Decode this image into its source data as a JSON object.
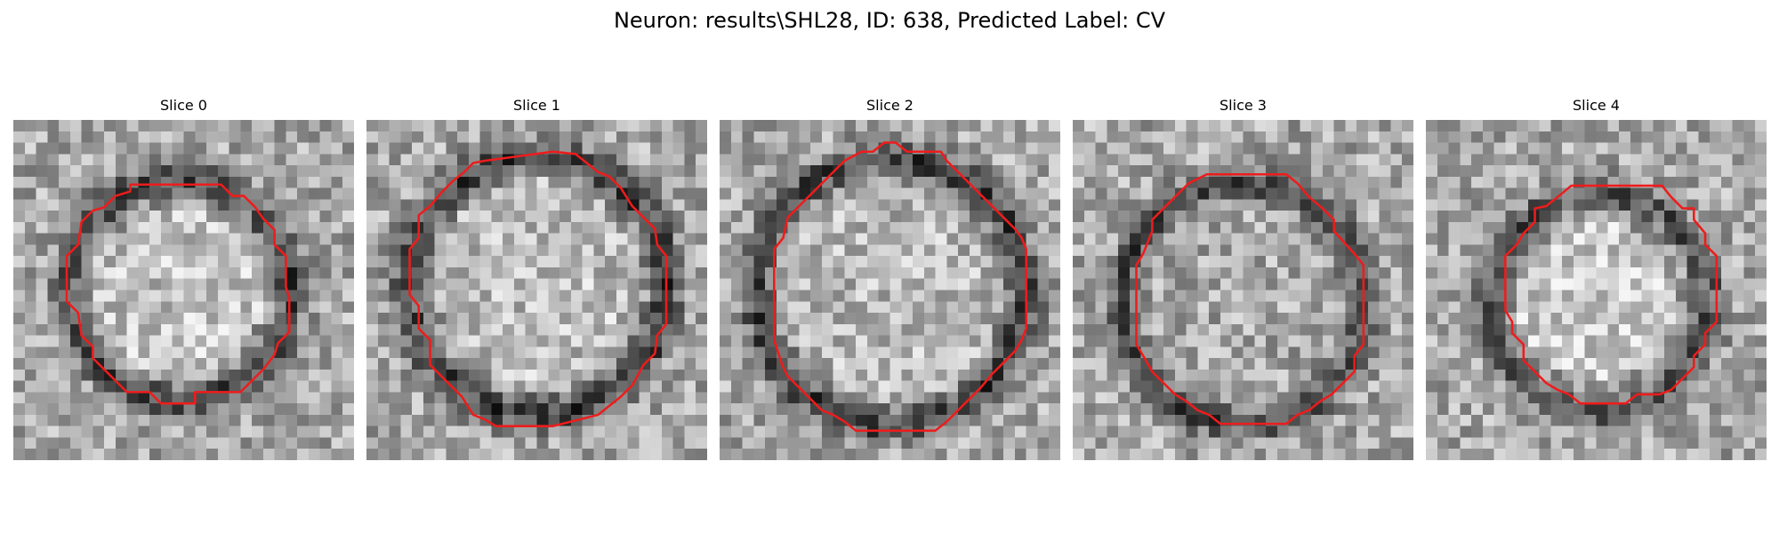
{
  "figure": {
    "title": "Neuron: results\\SHL28, ID: 638, Predicted Label: CV"
  },
  "contour_color": "#ee1c1c",
  "grid_size": 30,
  "slices": [
    {
      "title": "Slice 0",
      "seed": 11,
      "ring": {
        "cx": 14.6,
        "cy": 15.0,
        "r": 9.8,
        "darkness": 0.38
      },
      "core": {
        "cx": 14.4,
        "cy": 15.2,
        "r": 7.5,
        "brightness": 0.1
      },
      "contour": [
        [
          10.3,
          5.7
        ],
        [
          18.3,
          5.7
        ],
        [
          19.3,
          6.7
        ],
        [
          20.3,
          6.7
        ],
        [
          21.3,
          7.7
        ],
        [
          22.0,
          8.7
        ],
        [
          23.0,
          9.7
        ],
        [
          23.0,
          11.0
        ],
        [
          24.0,
          12.0
        ],
        [
          24.0,
          14.7
        ],
        [
          24.3,
          15.7
        ],
        [
          24.3,
          18.7
        ],
        [
          23.3,
          19.7
        ],
        [
          23.0,
          20.7
        ],
        [
          22.0,
          22.0
        ],
        [
          21.0,
          23.0
        ],
        [
          20.0,
          24.0
        ],
        [
          16.0,
          24.0
        ],
        [
          16.0,
          25.0
        ],
        [
          13.0,
          25.0
        ],
        [
          12.0,
          24.0
        ],
        [
          10.0,
          24.0
        ],
        [
          9.0,
          23.0
        ],
        [
          8.0,
          22.0
        ],
        [
          7.0,
          21.0
        ],
        [
          7.0,
          20.0
        ],
        [
          6.0,
          19.0
        ],
        [
          5.7,
          17.0
        ],
        [
          4.7,
          16.0
        ],
        [
          4.7,
          12.0
        ],
        [
          5.7,
          11.0
        ],
        [
          6.0,
          9.0
        ],
        [
          7.0,
          8.0
        ],
        [
          8.0,
          7.7
        ],
        [
          9.0,
          6.7
        ],
        [
          10.3,
          6.3
        ]
      ]
    },
    {
      "title": "Slice 1",
      "seed": 23,
      "ring": {
        "cx": 15.0,
        "cy": 14.6,
        "r": 11.4,
        "darkness": 0.4
      },
      "core": {
        "cx": 15.0,
        "cy": 14.2,
        "r": 9.0,
        "brightness": 0.08
      },
      "contour": [
        [
          10.4,
          3.6
        ],
        [
          16.4,
          2.8
        ],
        [
          18.4,
          3.0
        ],
        [
          20.4,
          4.6
        ],
        [
          21.4,
          5.0
        ],
        [
          22.4,
          6.0
        ],
        [
          23.4,
          7.6
        ],
        [
          24.4,
          8.6
        ],
        [
          25.4,
          9.6
        ],
        [
          25.6,
          11.0
        ],
        [
          26.4,
          12.0
        ],
        [
          26.4,
          18.0
        ],
        [
          25.6,
          19.0
        ],
        [
          25.4,
          20.6
        ],
        [
          24.4,
          21.6
        ],
        [
          23.4,
          23.4
        ],
        [
          22.4,
          24.4
        ],
        [
          20.4,
          26.0
        ],
        [
          16.4,
          27.0
        ],
        [
          11.4,
          27.0
        ],
        [
          10.4,
          26.4
        ],
        [
          9.4,
          26.0
        ],
        [
          8.4,
          24.4
        ],
        [
          7.4,
          23.4
        ],
        [
          6.4,
          22.4
        ],
        [
          5.6,
          21.6
        ],
        [
          5.6,
          19.4
        ],
        [
          4.6,
          18.4
        ],
        [
          4.6,
          16.4
        ],
        [
          3.8,
          15.4
        ],
        [
          3.8,
          11.4
        ],
        [
          4.6,
          10.4
        ],
        [
          4.6,
          8.4
        ],
        [
          5.6,
          7.6
        ],
        [
          6.6,
          6.4
        ],
        [
          7.6,
          5.4
        ],
        [
          8.6,
          4.6
        ],
        [
          9.4,
          3.8
        ]
      ]
    },
    {
      "title": "Slice 2",
      "seed": 37,
      "ring": {
        "cx": 15.1,
        "cy": 15.2,
        "r": 11.8,
        "darkness": 0.4
      },
      "core": {
        "cx": 14.9,
        "cy": 15.4,
        "r": 9.4,
        "brightness": 0.06
      },
      "contour": [
        [
          14.5,
          2.0
        ],
        [
          15.5,
          2.0
        ],
        [
          16.5,
          2.8
        ],
        [
          19.5,
          2.8
        ],
        [
          20.0,
          3.6
        ],
        [
          21.0,
          4.6
        ],
        [
          22.0,
          5.6
        ],
        [
          23.0,
          6.6
        ],
        [
          24.0,
          7.6
        ],
        [
          25.0,
          8.6
        ],
        [
          26.0,
          9.6
        ],
        [
          26.6,
          10.4
        ],
        [
          27.0,
          11.4
        ],
        [
          27.0,
          18.4
        ],
        [
          26.6,
          19.4
        ],
        [
          26.0,
          20.4
        ],
        [
          25.0,
          21.4
        ],
        [
          24.0,
          22.4
        ],
        [
          23.0,
          23.6
        ],
        [
          22.0,
          24.6
        ],
        [
          21.0,
          25.6
        ],
        [
          20.0,
          26.6
        ],
        [
          19.0,
          27.4
        ],
        [
          12.0,
          27.4
        ],
        [
          11.0,
          26.6
        ],
        [
          10.0,
          26.0
        ],
        [
          9.0,
          25.6
        ],
        [
          8.0,
          24.6
        ],
        [
          7.0,
          23.6
        ],
        [
          6.0,
          22.6
        ],
        [
          5.5,
          21.6
        ],
        [
          4.8,
          19.4
        ],
        [
          4.8,
          11.4
        ],
        [
          5.6,
          10.4
        ],
        [
          6.0,
          8.6
        ],
        [
          7.0,
          7.6
        ],
        [
          8.0,
          6.6
        ],
        [
          9.0,
          5.6
        ],
        [
          10.0,
          4.6
        ],
        [
          11.0,
          3.6
        ],
        [
          12.5,
          2.8
        ],
        [
          13.5,
          2.8
        ]
      ]
    },
    {
      "title": "Slice 3",
      "seed": 41,
      "ring": {
        "cx": 15.0,
        "cy": 16.2,
        "r": 10.6,
        "darkness": 0.36
      },
      "core": {
        "cx": 15.2,
        "cy": 16.0,
        "r": 8.2,
        "brightness": 0.0
      },
      "contour": [
        [
          11.8,
          4.8
        ],
        [
          18.8,
          4.8
        ],
        [
          19.8,
          5.6
        ],
        [
          20.8,
          6.8
        ],
        [
          22.0,
          7.8
        ],
        [
          23.0,
          8.8
        ],
        [
          23.0,
          9.8
        ],
        [
          24.8,
          11.8
        ],
        [
          25.6,
          12.8
        ],
        [
          25.6,
          19.8
        ],
        [
          24.8,
          20.8
        ],
        [
          24.8,
          22.2
        ],
        [
          23.8,
          23.2
        ],
        [
          22.8,
          24.2
        ],
        [
          21.8,
          24.8
        ],
        [
          20.8,
          25.6
        ],
        [
          19.8,
          26.0
        ],
        [
          18.8,
          26.8
        ],
        [
          13.0,
          26.8
        ],
        [
          12.0,
          26.0
        ],
        [
          11.0,
          25.6
        ],
        [
          10.0,
          24.8
        ],
        [
          9.0,
          24.2
        ],
        [
          8.0,
          23.2
        ],
        [
          7.0,
          22.2
        ],
        [
          6.2,
          20.8
        ],
        [
          5.6,
          19.8
        ],
        [
          5.6,
          12.8
        ],
        [
          6.2,
          11.8
        ],
        [
          7.0,
          9.8
        ],
        [
          7.0,
          8.8
        ],
        [
          8.0,
          7.8
        ],
        [
          9.0,
          6.8
        ],
        [
          10.2,
          5.6
        ]
      ]
    },
    {
      "title": "Slice 4",
      "seed": 53,
      "ring": {
        "cx": 15.3,
        "cy": 16.2,
        "r": 9.6,
        "darkness": 0.33
      },
      "core": {
        "cx": 15.0,
        "cy": 16.0,
        "r": 6.8,
        "brightness": 0.14
      },
      "contour": [
        [
          12.8,
          5.8
        ],
        [
          20.8,
          5.8
        ],
        [
          21.6,
          6.8
        ],
        [
          22.6,
          7.8
        ],
        [
          23.6,
          7.8
        ],
        [
          23.6,
          8.8
        ],
        [
          24.6,
          10.0
        ],
        [
          24.6,
          11.0
        ],
        [
          25.6,
          12.0
        ],
        [
          25.6,
          17.8
        ],
        [
          24.6,
          18.8
        ],
        [
          24.6,
          19.8
        ],
        [
          23.6,
          20.8
        ],
        [
          23.6,
          21.8
        ],
        [
          22.6,
          22.8
        ],
        [
          21.6,
          23.8
        ],
        [
          20.6,
          24.2
        ],
        [
          18.6,
          24.2
        ],
        [
          17.6,
          25.0
        ],
        [
          13.6,
          25.0
        ],
        [
          12.6,
          24.2
        ],
        [
          11.6,
          23.8
        ],
        [
          10.6,
          23.2
        ],
        [
          9.6,
          22.2
        ],
        [
          8.6,
          21.2
        ],
        [
          8.6,
          19.8
        ],
        [
          7.6,
          18.8
        ],
        [
          7.6,
          17.8
        ],
        [
          7.0,
          16.8
        ],
        [
          7.0,
          12.0
        ],
        [
          8.0,
          11.0
        ],
        [
          8.6,
          10.0
        ],
        [
          9.6,
          9.0
        ],
        [
          9.6,
          7.8
        ],
        [
          10.6,
          7.6
        ],
        [
          11.6,
          6.8
        ],
        [
          12.8,
          5.8
        ]
      ]
    }
  ]
}
